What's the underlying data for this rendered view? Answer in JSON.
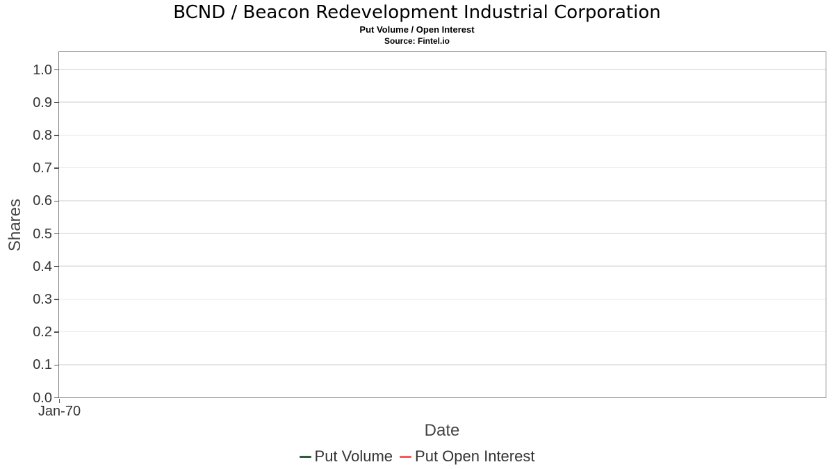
{
  "chart_data": {
    "type": "line",
    "title": "BCND / Beacon Redevelopment Industrial Corporation",
    "subtitle": "Put Volume / Open Interest",
    "source_note": "Source: Fintel.io",
    "xlabel": "Date",
    "ylabel": "Shares",
    "x_tick_labels": [
      "Jan-70"
    ],
    "y_tick_labels": [
      "0.0",
      "0.1",
      "0.2",
      "0.3",
      "0.4",
      "0.5",
      "0.6",
      "0.7",
      "0.8",
      "0.9",
      "1.0"
    ],
    "ylim": [
      0.0,
      1.05
    ],
    "grid": true,
    "legend_position": "bottom-center",
    "series": [
      {
        "name": "Put Volume",
        "color": "#2e5c3f",
        "x": [],
        "y": []
      },
      {
        "name": "Put Open Interest",
        "color": "#f45b5b",
        "x": [],
        "y": []
      }
    ]
  },
  "colors": {
    "plot_border": "#808080",
    "gridline": "#e6e6e6",
    "tick": "#555555",
    "tick_label": "#333333",
    "axis_title": "#444444",
    "title_text": "#000000",
    "legend_text": "#333333"
  }
}
